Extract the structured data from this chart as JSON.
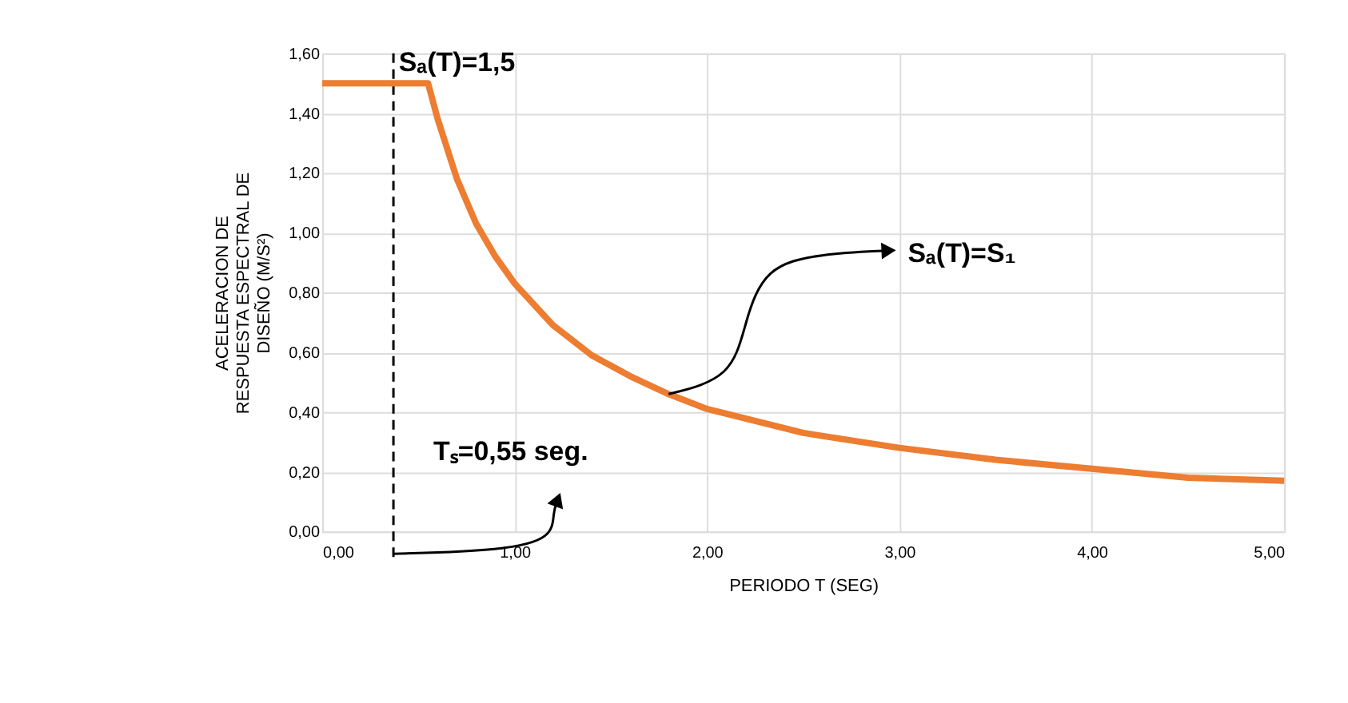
{
  "chart_data": {
    "type": "line",
    "xlabel": "PERIODO T (SEG)",
    "ylabel": "ACELERACION DE RESPUESTA ESPECTRAL DE DISEÑO  (M/S²)",
    "x": [
      0,
      0.55,
      0.6,
      0.7,
      0.8,
      0.9,
      1.0,
      1.2,
      1.4,
      1.6,
      1.8,
      2.0,
      2.5,
      3.0,
      3.5,
      4.0,
      4.5,
      5.0
    ],
    "series": [
      {
        "color": "#ed7d31",
        "values": [
          1.5,
          1.5,
          1.38,
          1.18,
          1.03,
          0.92,
          0.83,
          0.69,
          0.59,
          0.52,
          0.46,
          0.41,
          0.33,
          0.28,
          0.24,
          0.21,
          0.18,
          0.17
        ]
      }
    ],
    "xlim": [
      0,
      5
    ],
    "xticks": [
      {
        "value": 0,
        "label": "0,00"
      },
      {
        "value": 1,
        "label": "1,00"
      },
      {
        "value": 2,
        "label": "2,00"
      },
      {
        "value": 3,
        "label": "3,00"
      },
      {
        "value": 4,
        "label": "4,00"
      },
      {
        "value": 5,
        "label": "5,00"
      }
    ],
    "ylim": [
      0,
      1.6
    ],
    "yticks": [
      {
        "value": 0,
        "label": "0,00"
      },
      {
        "value": 0.2,
        "label": "0,20"
      },
      {
        "value": 0.4,
        "label": "0,40"
      },
      {
        "value": 0.6,
        "label": "0,60"
      },
      {
        "value": 0.8,
        "label": "0,80"
      },
      {
        "value": 1.0,
        "label": "1,00"
      },
      {
        "value": 1.2,
        "label": "1,20"
      },
      {
        "value": 1.4,
        "label": "1,40"
      },
      {
        "value": 1.6,
        "label": "1,60"
      }
    ],
    "grid": true,
    "marker": "none",
    "line_style": "solid",
    "ref_lines": [
      {
        "axis": "x",
        "value": 0.37,
        "color": "#000000",
        "line_style": "dashed"
      }
    ],
    "annotations": [
      "Sₐ(T)=1,5",
      {
        "text": "Sₐ(T)=S₁",
        "x": 1.8,
        "y": 0.46
      },
      {
        "text": "Tₛ=0,55 seg.",
        "x": 0.37,
        "y": 0
      }
    ]
  }
}
